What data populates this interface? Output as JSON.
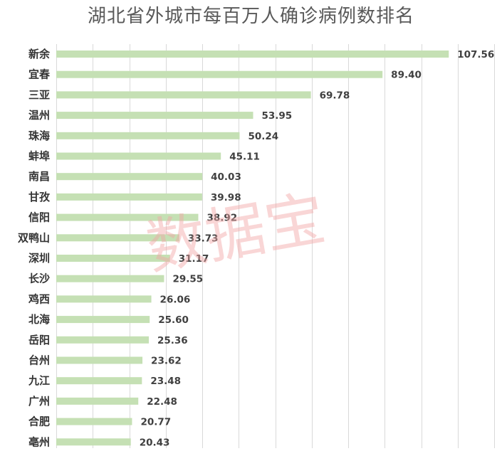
{
  "chart_data": {
    "type": "bar",
    "orientation": "horizontal",
    "title": "湖北省外城市每百万人确诊病例数排名",
    "categories": [
      "新余",
      "宜春",
      "三亚",
      "温州",
      "珠海",
      "蚌埠",
      "南昌",
      "甘孜",
      "信阳",
      "双鸭山",
      "深圳",
      "长沙",
      "鸡西",
      "北海",
      "岳阳",
      "台州",
      "九江",
      "广州",
      "合肥",
      "亳州"
    ],
    "values": [
      107.56,
      89.4,
      69.78,
      53.95,
      50.24,
      45.11,
      40.03,
      39.98,
      38.92,
      33.73,
      31.17,
      29.55,
      26.06,
      25.6,
      25.36,
      23.62,
      23.48,
      22.48,
      20.77,
      20.43
    ],
    "value_labels": [
      "107.56",
      "89.40",
      "69.78",
      "53.95",
      "50.24",
      "45.11",
      "40.03",
      "39.98",
      "38.92",
      "33.73",
      "31.17",
      "29.55",
      "26.06",
      "25.60",
      "25.36",
      "23.62",
      "23.48",
      "22.48",
      "20.77",
      "20.43"
    ],
    "xlim": [
      0,
      120
    ],
    "grid": true,
    "bar_color": "#c5e0b4",
    "grid_color": "#d9d9d9"
  },
  "watermark": "数据宝"
}
